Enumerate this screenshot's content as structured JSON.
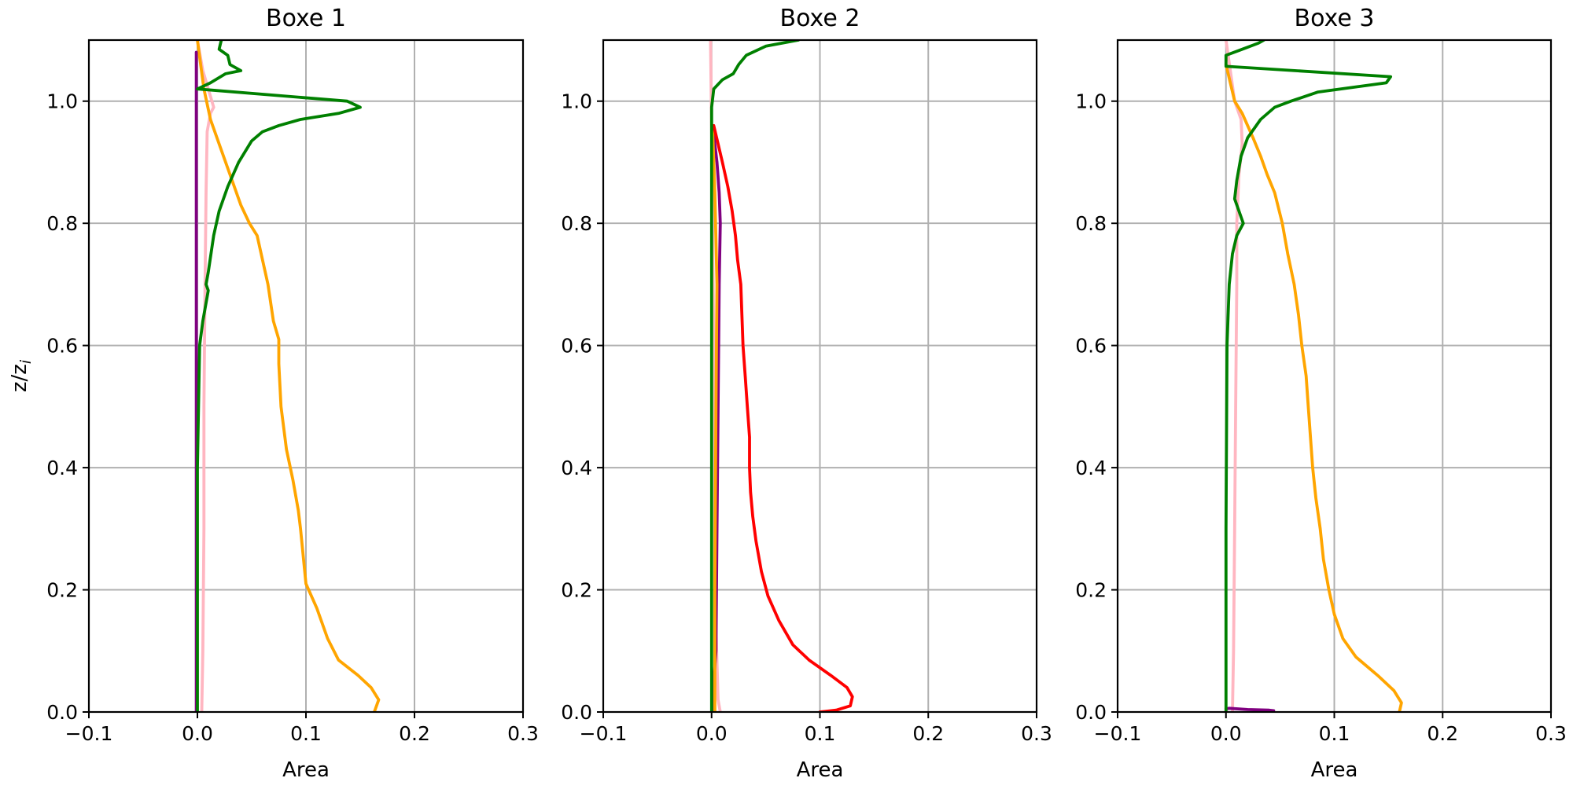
{
  "chart_data": [
    {
      "type": "line",
      "title": "Boxe 1",
      "xlabel": "Area",
      "ylabel": "z/z_i",
      "xlim": [
        -0.1,
        0.3
      ],
      "ylim": [
        0.0,
        1.1
      ],
      "xticks": [
        -0.1,
        0.0,
        0.1,
        0.2,
        0.3
      ],
      "xtick_labels": [
        "−0.1",
        "0.0",
        "0.1",
        "0.2",
        "0.3"
      ],
      "yticks": [
        0.0,
        0.2,
        0.4,
        0.6,
        0.8,
        1.0
      ],
      "ytick_labels": [
        "0.0",
        "0.2",
        "0.4",
        "0.6",
        "0.8",
        "1.0"
      ],
      "grid": true,
      "series": [
        {
          "color": "#ffb6c1",
          "points": [
            [
              0.004,
              0.0
            ],
            [
              0.005,
              0.1
            ],
            [
              0.006,
              0.3
            ],
            [
              0.006,
              0.5
            ],
            [
              0.007,
              0.7
            ],
            [
              0.008,
              0.85
            ],
            [
              0.009,
              0.95
            ],
            [
              0.012,
              0.98
            ],
            [
              0.015,
              0.99
            ],
            [
              0.005,
              1.05
            ],
            [
              0.0,
              1.1
            ]
          ]
        },
        {
          "color": "#ffa500",
          "points": [
            [
              0.163,
              0.0
            ],
            [
              0.167,
              0.02
            ],
            [
              0.16,
              0.04
            ],
            [
              0.148,
              0.06
            ],
            [
              0.13,
              0.085
            ],
            [
              0.12,
              0.12
            ],
            [
              0.11,
              0.17
            ],
            [
              0.1,
              0.21
            ],
            [
              0.095,
              0.3
            ],
            [
              0.093,
              0.33
            ],
            [
              0.088,
              0.38
            ],
            [
              0.082,
              0.43
            ],
            [
              0.077,
              0.5
            ],
            [
              0.075,
              0.57
            ],
            [
              0.075,
              0.61
            ],
            [
              0.07,
              0.64
            ],
            [
              0.065,
              0.7
            ],
            [
              0.06,
              0.74
            ],
            [
              0.055,
              0.78
            ],
            [
              0.048,
              0.8
            ],
            [
              0.04,
              0.83
            ],
            [
              0.03,
              0.88
            ],
            [
              0.02,
              0.93
            ],
            [
              0.012,
              0.97
            ],
            [
              0.006,
              1.02
            ],
            [
              0.003,
              1.06
            ],
            [
              0.0,
              1.1
            ]
          ]
        },
        {
          "color": "#800080",
          "points": [
            [
              -0.001,
              0.0
            ],
            [
              -0.001,
              0.5
            ],
            [
              -0.001,
              0.8
            ],
            [
              -0.001,
              1.08
            ]
          ]
        },
        {
          "color": "#008000",
          "points": [
            [
              0.0,
              0.0
            ],
            [
              0.0,
              0.4
            ],
            [
              0.002,
              0.6
            ],
            [
              0.005,
              0.64
            ],
            [
              0.01,
              0.69
            ],
            [
              0.008,
              0.7
            ],
            [
              0.01,
              0.72
            ],
            [
              0.015,
              0.78
            ],
            [
              0.02,
              0.82
            ],
            [
              0.028,
              0.86
            ],
            [
              0.038,
              0.9
            ],
            [
              0.05,
              0.935
            ],
            [
              0.06,
              0.95
            ],
            [
              0.075,
              0.96
            ],
            [
              0.095,
              0.97
            ],
            [
              0.13,
              0.98
            ],
            [
              0.15,
              0.99
            ],
            [
              0.138,
              1.0
            ],
            [
              0.0,
              1.02
            ],
            [
              0.012,
              1.03
            ],
            [
              0.026,
              1.045
            ],
            [
              0.04,
              1.05
            ],
            [
              0.03,
              1.06
            ],
            [
              0.028,
              1.075
            ],
            [
              0.02,
              1.085
            ],
            [
              0.022,
              1.1
            ]
          ]
        }
      ]
    },
    {
      "type": "line",
      "title": "Boxe 2",
      "xlabel": "Area",
      "ylabel": "",
      "xlim": [
        -0.1,
        0.3
      ],
      "ylim": [
        0.0,
        1.1
      ],
      "xticks": [
        -0.1,
        0.0,
        0.1,
        0.2,
        0.3
      ],
      "xtick_labels": [
        "−0.1",
        "0.0",
        "0.1",
        "0.2",
        "0.3"
      ],
      "yticks": [
        0.0,
        0.2,
        0.4,
        0.6,
        0.8,
        1.0
      ],
      "ytick_labels": [
        "0.0",
        "0.2",
        "0.4",
        "0.6",
        "0.8",
        "1.0"
      ],
      "grid": true,
      "series": [
        {
          "color": "#ffb6c1",
          "points": [
            [
              0.008,
              0.0
            ],
            [
              0.006,
              0.02
            ],
            [
              0.003,
              0.2
            ],
            [
              0.002,
              0.6
            ],
            [
              0.0,
              0.95
            ],
            [
              -0.001,
              1.1
            ]
          ]
        },
        {
          "color": "#800080",
          "points": [
            [
              0.002,
              0.0
            ],
            [
              0.002,
              0.05
            ],
            [
              0.004,
              0.1
            ],
            [
              0.005,
              0.3
            ],
            [
              0.006,
              0.5
            ],
            [
              0.007,
              0.7
            ],
            [
              0.008,
              0.8
            ],
            [
              0.007,
              0.85
            ],
            [
              0.005,
              0.9
            ],
            [
              0.001,
              0.96
            ]
          ]
        },
        {
          "color": "#ffa500",
          "points": [
            [
              0.003,
              0.0
            ],
            [
              0.003,
              0.2
            ],
            [
              0.004,
              0.5
            ],
            [
              0.005,
              0.7
            ],
            [
              0.003,
              0.85
            ],
            [
              0.001,
              0.95
            ]
          ]
        },
        {
          "color": "#ff0000",
          "points": [
            [
              0.1,
              0.0
            ],
            [
              0.115,
              0.003
            ],
            [
              0.128,
              0.01
            ],
            [
              0.13,
              0.025
            ],
            [
              0.125,
              0.04
            ],
            [
              0.11,
              0.06
            ],
            [
              0.09,
              0.085
            ],
            [
              0.075,
              0.11
            ],
            [
              0.062,
              0.15
            ],
            [
              0.052,
              0.19
            ],
            [
              0.046,
              0.23
            ],
            [
              0.041,
              0.28
            ],
            [
              0.038,
              0.32
            ],
            [
              0.036,
              0.36
            ],
            [
              0.035,
              0.4
            ],
            [
              0.035,
              0.45
            ],
            [
              0.033,
              0.5
            ],
            [
              0.031,
              0.55
            ],
            [
              0.029,
              0.6
            ],
            [
              0.028,
              0.65
            ],
            [
              0.027,
              0.7
            ],
            [
              0.024,
              0.74
            ],
            [
              0.022,
              0.78
            ],
            [
              0.019,
              0.82
            ],
            [
              0.015,
              0.86
            ],
            [
              0.01,
              0.9
            ],
            [
              0.006,
              0.93
            ],
            [
              0.002,
              0.96
            ]
          ]
        },
        {
          "color": "#008000",
          "points": [
            [
              0.0,
              0.0
            ],
            [
              0.0,
              0.5
            ],
            [
              0.0,
              0.9
            ],
            [
              0.0,
              0.99
            ],
            [
              0.002,
              1.02
            ],
            [
              0.01,
              1.035
            ],
            [
              0.02,
              1.045
            ],
            [
              0.025,
              1.06
            ],
            [
              0.032,
              1.075
            ],
            [
              0.05,
              1.09
            ],
            [
              0.08,
              1.1
            ]
          ]
        }
      ]
    },
    {
      "type": "line",
      "title": "Boxe 3",
      "xlabel": "Area",
      "ylabel": "",
      "xlim": [
        -0.1,
        0.3
      ],
      "ylim": [
        0.0,
        1.1
      ],
      "xticks": [
        -0.1,
        0.0,
        0.1,
        0.2,
        0.3
      ],
      "xtick_labels": [
        "−0.1",
        "0.0",
        "0.1",
        "0.2",
        "0.3"
      ],
      "yticks": [
        0.0,
        0.2,
        0.4,
        0.6,
        0.8,
        1.0
      ],
      "ytick_labels": [
        "0.0",
        "0.2",
        "0.4",
        "0.6",
        "0.8",
        "1.0"
      ],
      "grid": true,
      "series": [
        {
          "color": "#ffb6c1",
          "points": [
            [
              0.006,
              0.0
            ],
            [
              0.007,
              0.1
            ],
            [
              0.008,
              0.3
            ],
            [
              0.009,
              0.5
            ],
            [
              0.01,
              0.7
            ],
            [
              0.01,
              0.8
            ],
            [
              0.012,
              0.88
            ],
            [
              0.015,
              0.93
            ],
            [
              0.014,
              0.97
            ],
            [
              0.008,
              1.0
            ],
            [
              0.004,
              1.05
            ],
            [
              0.0,
              1.1
            ]
          ]
        },
        {
          "color": "#ffa500",
          "points": [
            [
              0.16,
              0.0
            ],
            [
              0.162,
              0.015
            ],
            [
              0.155,
              0.035
            ],
            [
              0.14,
              0.06
            ],
            [
              0.12,
              0.09
            ],
            [
              0.108,
              0.12
            ],
            [
              0.1,
              0.16
            ],
            [
              0.095,
              0.2
            ],
            [
              0.09,
              0.25
            ],
            [
              0.087,
              0.3
            ],
            [
              0.083,
              0.35
            ],
            [
              0.08,
              0.4
            ],
            [
              0.078,
              0.45
            ],
            [
              0.076,
              0.5
            ],
            [
              0.074,
              0.55
            ],
            [
              0.07,
              0.6
            ],
            [
              0.067,
              0.65
            ],
            [
              0.063,
              0.7
            ],
            [
              0.057,
              0.75
            ],
            [
              0.052,
              0.8
            ],
            [
              0.045,
              0.85
            ],
            [
              0.038,
              0.88
            ],
            [
              0.032,
              0.91
            ],
            [
              0.025,
              0.94
            ],
            [
              0.02,
              0.96
            ],
            [
              0.015,
              0.98
            ],
            [
              0.008,
              1.0
            ],
            [
              0.004,
              1.03
            ],
            [
              0.0,
              1.06
            ]
          ]
        },
        {
          "color": "#800080",
          "points": [
            [
              0.0,
              0.005
            ],
            [
              0.003,
              0.006
            ],
            [
              0.02,
              0.004
            ],
            [
              0.04,
              0.003
            ],
            [
              0.044,
              0.002
            ]
          ]
        },
        {
          "color": "#008000",
          "points": [
            [
              0.0,
              0.0
            ],
            [
              0.0,
              0.3
            ],
            [
              0.001,
              0.6
            ],
            [
              0.003,
              0.7
            ],
            [
              0.006,
              0.75
            ],
            [
              0.01,
              0.78
            ],
            [
              0.016,
              0.8
            ],
            [
              0.012,
              0.82
            ],
            [
              0.008,
              0.84
            ],
            [
              0.01,
              0.87
            ],
            [
              0.014,
              0.91
            ],
            [
              0.02,
              0.94
            ],
            [
              0.032,
              0.97
            ],
            [
              0.045,
              0.99
            ],
            [
              0.06,
              1.0
            ],
            [
              0.085,
              1.015
            ],
            [
              0.148,
              1.03
            ],
            [
              0.152,
              1.04
            ],
            [
              0.0,
              1.057
            ],
            [
              0.0,
              1.075
            ],
            [
              0.015,
              1.085
            ],
            [
              0.03,
              1.095
            ],
            [
              0.035,
              1.1
            ]
          ]
        }
      ]
    }
  ]
}
